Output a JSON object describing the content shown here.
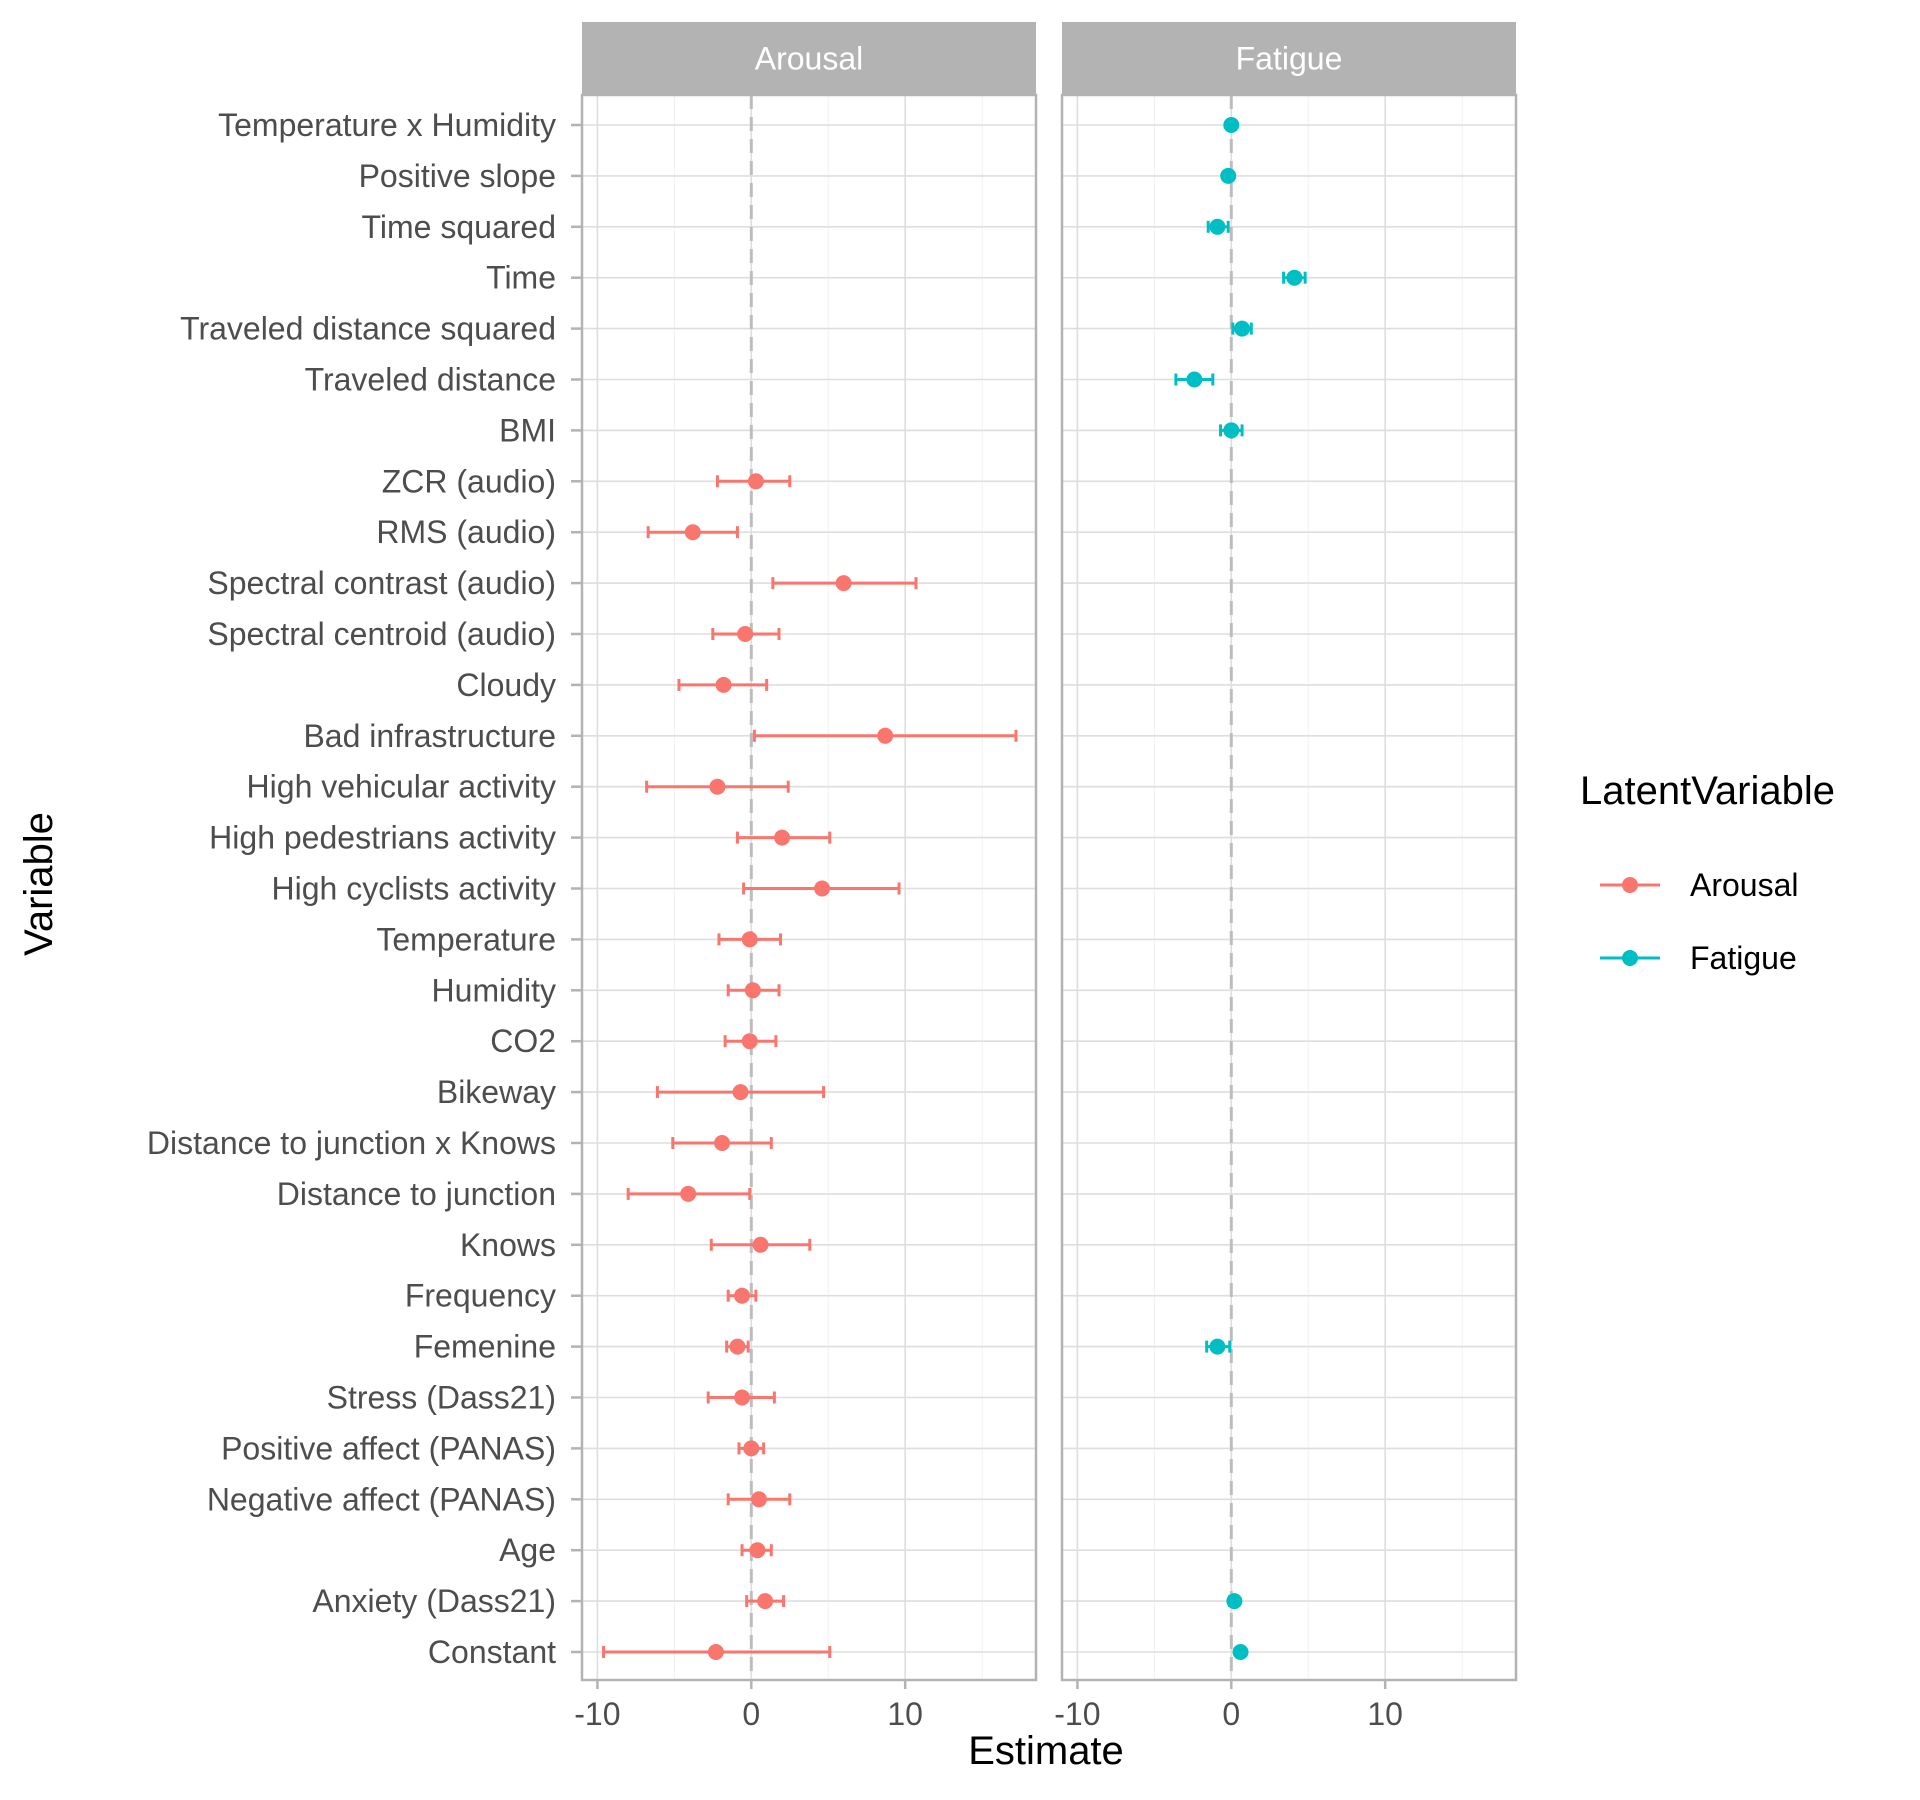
{
  "chart_data": {
    "type": "scatter",
    "subtype": "coefficient-plot-with-error-bars",
    "xlabel": "Estimate",
    "ylabel": "Variable",
    "xlim": [
      -11,
      18.5
    ],
    "xticks": [
      -10,
      0,
      10
    ],
    "xtick_labels": [
      "-10",
      "0",
      "10"
    ],
    "reference_line_x": 0,
    "grid": true,
    "legend": {
      "title": "LatentVariable",
      "position": "right",
      "entries": [
        {
          "name": "Arousal",
          "color": "#F8766D"
        },
        {
          "name": "Fatigue",
          "color": "#00BFC4"
        }
      ]
    },
    "categories": [
      "Temperature x Humidity",
      "Positive slope",
      "Time squared",
      "Time",
      "Traveled distance squared",
      "Traveled distance",
      "BMI",
      "ZCR (audio)",
      "RMS (audio)",
      "Spectral contrast (audio)",
      "Spectral centroid (audio)",
      "Cloudy",
      "Bad infrastructure",
      "High vehicular activity",
      "High pedestrians activity",
      "High cyclists activity",
      "Temperature",
      "Humidity",
      "CO2",
      "Bikeway",
      "Distance to junction x Knows",
      "Distance to junction",
      "Knows",
      "Frequency",
      "Femenine",
      "Stress (Dass21)",
      "Positive affect (PANAS)",
      "Negative affect (PANAS)",
      "Age",
      "Anxiety (Dass21)",
      "Constant"
    ],
    "facets": [
      {
        "name": "Arousal",
        "color": "#F8766D",
        "points": [
          {
            "variable": "ZCR (audio)",
            "estimate": 0.3,
            "lower": -2.2,
            "upper": 2.5
          },
          {
            "variable": "RMS (audio)",
            "estimate": -3.8,
            "lower": -6.7,
            "upper": -0.9
          },
          {
            "variable": "Spectral contrast (audio)",
            "estimate": 6.0,
            "lower": 1.4,
            "upper": 10.7
          },
          {
            "variable": "Spectral centroid (audio)",
            "estimate": -0.4,
            "lower": -2.5,
            "upper": 1.8
          },
          {
            "variable": "Cloudy",
            "estimate": -1.8,
            "lower": -4.7,
            "upper": 1.0
          },
          {
            "variable": "Bad infrastructure",
            "estimate": 8.7,
            "lower": 0.2,
            "upper": 17.2
          },
          {
            "variable": "High vehicular activity",
            "estimate": -2.2,
            "lower": -6.8,
            "upper": 2.4
          },
          {
            "variable": "High pedestrians activity",
            "estimate": 2.0,
            "lower": -0.9,
            "upper": 5.1
          },
          {
            "variable": "High cyclists activity",
            "estimate": 4.6,
            "lower": -0.5,
            "upper": 9.6
          },
          {
            "variable": "Temperature",
            "estimate": -0.1,
            "lower": -2.1,
            "upper": 1.9
          },
          {
            "variable": "Humidity",
            "estimate": 0.1,
            "lower": -1.5,
            "upper": 1.8
          },
          {
            "variable": "CO2",
            "estimate": -0.1,
            "lower": -1.7,
            "upper": 1.6
          },
          {
            "variable": "Bikeway",
            "estimate": -0.7,
            "lower": -6.1,
            "upper": 4.7
          },
          {
            "variable": "Distance to junction x Knows",
            "estimate": -1.9,
            "lower": -5.1,
            "upper": 1.3
          },
          {
            "variable": "Distance to junction",
            "estimate": -4.1,
            "lower": -8.0,
            "upper": -0.1
          },
          {
            "variable": "Knows",
            "estimate": 0.6,
            "lower": -2.6,
            "upper": 3.8
          },
          {
            "variable": "Frequency",
            "estimate": -0.6,
            "lower": -1.5,
            "upper": 0.3
          },
          {
            "variable": "Femenine",
            "estimate": -0.9,
            "lower": -1.6,
            "upper": -0.2
          },
          {
            "variable": "Stress (Dass21)",
            "estimate": -0.6,
            "lower": -2.8,
            "upper": 1.5
          },
          {
            "variable": "Positive affect (PANAS)",
            "estimate": 0.0,
            "lower": -0.8,
            "upper": 0.8
          },
          {
            "variable": "Negative affect (PANAS)",
            "estimate": 0.5,
            "lower": -1.5,
            "upper": 2.5
          },
          {
            "variable": "Age",
            "estimate": 0.4,
            "lower": -0.6,
            "upper": 1.3
          },
          {
            "variable": "Anxiety (Dass21)",
            "estimate": 0.9,
            "lower": -0.3,
            "upper": 2.1
          },
          {
            "variable": "Constant",
            "estimate": -2.3,
            "lower": -9.6,
            "upper": 5.1
          }
        ]
      },
      {
        "name": "Fatigue",
        "color": "#00BFC4",
        "points": [
          {
            "variable": "Temperature x Humidity",
            "estimate": 0.0,
            "lower": -0.2,
            "upper": 0.2
          },
          {
            "variable": "Positive slope",
            "estimate": -0.2,
            "lower": -0.4,
            "upper": 0.0
          },
          {
            "variable": "Time squared",
            "estimate": -0.9,
            "lower": -1.5,
            "upper": -0.2
          },
          {
            "variable": "Time",
            "estimate": 4.1,
            "lower": 3.4,
            "upper": 4.8
          },
          {
            "variable": "Traveled distance squared",
            "estimate": 0.7,
            "lower": 0.1,
            "upper": 1.3
          },
          {
            "variable": "Traveled distance",
            "estimate": -2.4,
            "lower": -3.6,
            "upper": -1.2
          },
          {
            "variable": "BMI",
            "estimate": 0.0,
            "lower": -0.7,
            "upper": 0.7
          },
          {
            "variable": "Femenine",
            "estimate": -0.9,
            "lower": -1.6,
            "upper": -0.1
          },
          {
            "variable": "Anxiety (Dass21)",
            "estimate": 0.2,
            "lower": -0.1,
            "upper": 0.4
          },
          {
            "variable": "Constant",
            "estimate": 0.6,
            "lower": 0.4,
            "upper": 0.8
          }
        ]
      }
    ]
  }
}
